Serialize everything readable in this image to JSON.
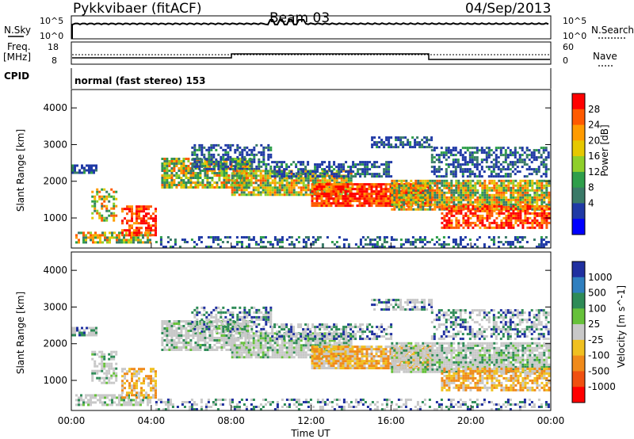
{
  "header": {
    "radar": "Pykkvibaer (fitACF)",
    "beam": "Beam 03",
    "date": "04/Sep/2013"
  },
  "noise_panel": {
    "left_label": "N.Sky",
    "left_ticks": [
      "10^5",
      "10^0"
    ],
    "right_ticks": [
      "10^5",
      "10^0"
    ],
    "right_label": "N.Search"
  },
  "freq_panel": {
    "left_label_1": "Freq.",
    "left_label_2": "[MHz]",
    "left_ticks": [
      "18",
      "8"
    ],
    "right_ticks": [
      "60",
      "0"
    ],
    "right_label": "Nave",
    "cpid_label": "CPID",
    "mode_text": "normal (fast stereo) 153"
  },
  "chart_data": [
    {
      "type": "heatmap",
      "ylabel": "Slant Range [km]",
      "colorbar_label": "Power [dB]",
      "colorbar_ticks": [
        "28",
        "24",
        "20",
        "16",
        "12",
        "8",
        "4"
      ],
      "colorbar_colors": [
        "#ff0000",
        "#ff5a00",
        "#ff9b00",
        "#e6c800",
        "#8fcf2a",
        "#2e9e4a",
        "#3a7a68",
        "#203aa6",
        "#0000ff"
      ],
      "yticks": [
        "4000",
        "3000",
        "2000",
        "1000"
      ],
      "ylim": [
        180,
        4500
      ]
    },
    {
      "type": "heatmap",
      "ylabel": "Slant Range [km]",
      "colorbar_label": "Velocity [m s^-1]",
      "colorbar_ticks": [
        "1000",
        "500",
        "100",
        "25",
        "-25",
        "-100",
        "-500",
        "-1000"
      ],
      "colorbar_colors": [
        "#2030a0",
        "#2f7fbf",
        "#2e8b57",
        "#66c13a",
        "#c8c8c8",
        "#f0c020",
        "#f08a1a",
        "#f05010",
        "#ff0000"
      ],
      "yticks": [
        "4000",
        "3000",
        "2000",
        "1000"
      ],
      "ylim": [
        180,
        4500
      ]
    }
  ],
  "xaxis": {
    "ticks": [
      "00:00",
      "04:00",
      "08:00",
      "12:00",
      "16:00",
      "20:00",
      "00:00"
    ],
    "label": "Time UT"
  }
}
